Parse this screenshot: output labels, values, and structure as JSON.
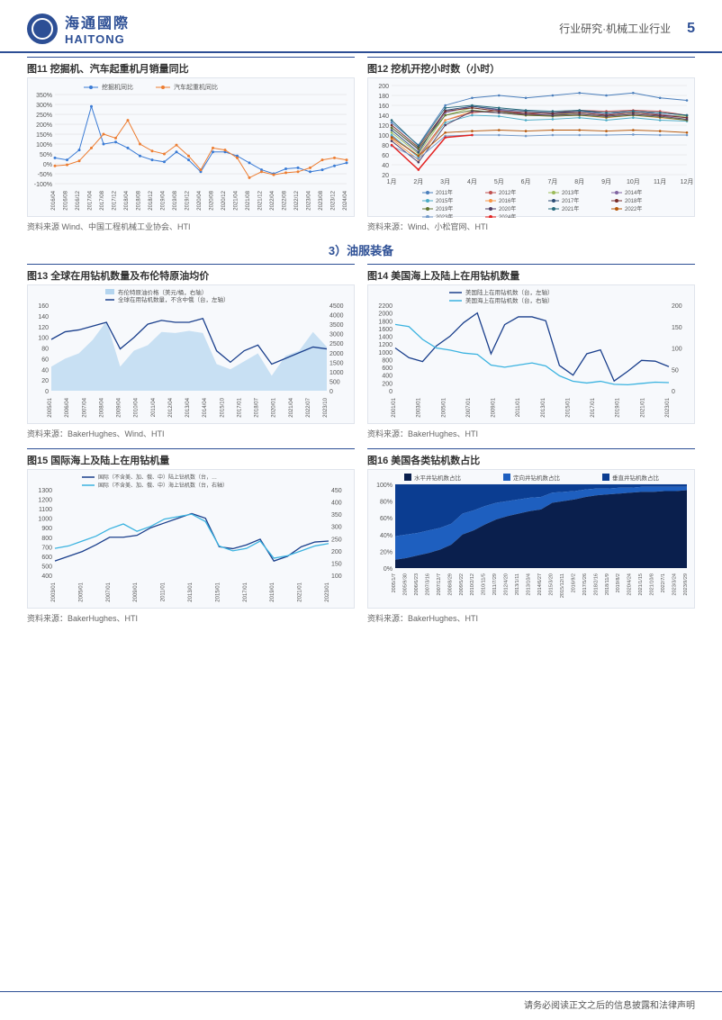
{
  "header": {
    "company_cn": "海通國際",
    "company_en": "HAITONG",
    "category": "行业研究·机械工业行业",
    "page": "5"
  },
  "section3": "3）油服装备",
  "footer": "请务必阅读正文之后的信息披露和法律声明",
  "fig11": {
    "title": "图11 挖掘机、汽车起重机月销量同比",
    "source": "资料来源 Wind、中国工程机械工业协会、HTI",
    "series": [
      {
        "name": "挖掘机同比",
        "color": "#3a7bd5"
      },
      {
        "name": "汽车起重机同比",
        "color": "#ed7d31"
      }
    ],
    "ylim": [
      -100,
      350
    ],
    "ytick": 50,
    "xlabels": [
      "2016/04",
      "2016/08",
      "2016/12",
      "2017/04",
      "2017/08",
      "2017/12",
      "2018/04",
      "2018/08",
      "2018/12",
      "2019/04",
      "2019/08",
      "2019/12",
      "2020/04",
      "2020/08",
      "2020/12",
      "2021/04",
      "2021/08",
      "2021/12",
      "2022/04",
      "2022/08",
      "2022/12",
      "2023/04",
      "2023/08",
      "2023/12",
      "2024/04"
    ],
    "s1": [
      30,
      20,
      70,
      290,
      100,
      110,
      80,
      40,
      20,
      10,
      60,
      20,
      -40,
      60,
      60,
      40,
      5,
      -30,
      -50,
      -25,
      -20,
      -40,
      -30,
      -10,
      5
    ],
    "s2": [
      -10,
      -5,
      15,
      80,
      150,
      130,
      220,
      100,
      65,
      50,
      95,
      40,
      -30,
      80,
      70,
      30,
      -70,
      -40,
      -55,
      -45,
      -40,
      -20,
      20,
      30,
      20
    ]
  },
  "fig12": {
    "title": "图12 挖机开挖小时数（小时）",
    "source": "资料来源：Wind、小松官网、HTI",
    "xlabels": [
      "1月",
      "2月",
      "3月",
      "4月",
      "5月",
      "6月",
      "7月",
      "8月",
      "9月",
      "10月",
      "11月",
      "12月"
    ],
    "ylim": [
      20,
      200
    ],
    "ytick": 20,
    "series": [
      {
        "name": "2011年",
        "color": "#4a7ebb",
        "v": [
          125,
          80,
          160,
          175,
          180,
          175,
          180,
          185,
          180,
          185,
          175,
          170
        ]
      },
      {
        "name": "2012年",
        "color": "#c0504d",
        "v": [
          98,
          58,
          130,
          145,
          150,
          142,
          145,
          150,
          148,
          150,
          148,
          140
        ]
      },
      {
        "name": "2013年",
        "color": "#9bbb59",
        "v": [
          105,
          62,
          140,
          155,
          148,
          140,
          140,
          145,
          140,
          145,
          140,
          138
        ]
      },
      {
        "name": "2014年",
        "color": "#8064a2",
        "v": [
          115,
          70,
          145,
          158,
          150,
          145,
          143,
          148,
          142,
          148,
          142,
          135
        ]
      },
      {
        "name": "2015年",
        "color": "#4bacc6",
        "v": [
          100,
          55,
          125,
          140,
          138,
          130,
          132,
          135,
          130,
          135,
          130,
          128
        ]
      },
      {
        "name": "2016年",
        "color": "#f79646",
        "v": [
          92,
          50,
          130,
          148,
          145,
          140,
          138,
          140,
          135,
          140,
          135,
          130
        ]
      },
      {
        "name": "2017年",
        "color": "#2c4d75",
        "v": [
          110,
          65,
          150,
          158,
          152,
          148,
          145,
          148,
          145,
          148,
          145,
          140
        ]
      },
      {
        "name": "2018年",
        "color": "#772c2a",
        "v": [
          120,
          75,
          148,
          155,
          148,
          145,
          143,
          145,
          140,
          145,
          140,
          135
        ]
      },
      {
        "name": "2019年",
        "color": "#5f7530",
        "v": [
          115,
          72,
          140,
          150,
          145,
          140,
          138,
          140,
          136,
          140,
          136,
          130
        ]
      },
      {
        "name": "2020年",
        "color": "#4d3b62",
        "v": [
          88,
          45,
          120,
          148,
          145,
          142,
          140,
          142,
          138,
          142,
          138,
          132
        ]
      },
      {
        "name": "2021年",
        "color": "#276a7c",
        "v": [
          130,
          78,
          155,
          160,
          155,
          150,
          148,
          150,
          145,
          148,
          145,
          140
        ]
      },
      {
        "name": "2022年",
        "color": "#b65708",
        "v": [
          95,
          58,
          105,
          108,
          110,
          108,
          110,
          110,
          108,
          110,
          108,
          105
        ]
      },
      {
        "name": "2023年",
        "color": "#729aca",
        "v": [
          78,
          52,
          98,
          100,
          100,
          98,
          100,
          100,
          100,
          101,
          100,
          100
        ]
      },
      {
        "name": "2024年",
        "color": "#e32322",
        "v": [
          80,
          30,
          95,
          100
        ]
      }
    ]
  },
  "fig13": {
    "title": "图13 全球在用钻机数量及布伦特原油均价",
    "source": "资料来源：BakerHughes、Wind、HTI",
    "leg": [
      {
        "name": "布伦特原油价格（美元/桶，右轴）",
        "color": "#b4d5ef",
        "type": "area"
      },
      {
        "name": "全球在用钻机数量，不含中俄（台，左轴）",
        "color": "#1a3f8c",
        "type": "line"
      }
    ],
    "ylim_l": [
      0,
      160
    ],
    "ytick_l": 20,
    "ylim_r": [
      0,
      4500
    ],
    "ytick_r": 500,
    "xlabels": [
      "2005/01",
      "2006/04",
      "2007/04",
      "2008/04",
      "2009/04",
      "2010/04",
      "2011/04",
      "2012/04",
      "2013/04",
      "2014/04",
      "2015/10",
      "2017/01",
      "2018/07",
      "2020/01",
      "2021/04",
      "2022/07",
      "2023/10"
    ],
    "oil": [
      45,
      60,
      70,
      95,
      130,
      45,
      75,
      85,
      110,
      108,
      112,
      108,
      50,
      40,
      55,
      70,
      28,
      65,
      75,
      110,
      82
    ],
    "rigs": [
      2700,
      3100,
      3200,
      3400,
      3600,
      2200,
      2800,
      3500,
      3700,
      3600,
      3600,
      3800,
      2100,
      1500,
      2100,
      2400,
      1400,
      1700,
      2000,
      2300,
      2200
    ]
  },
  "fig14": {
    "title": "图14 美国海上及陆上在用钻机数量",
    "source": "资料来源：BakerHughes、HTI",
    "leg": [
      {
        "name": "美国陆上在用钻机数（台，左轴）",
        "color": "#1a3f8c"
      },
      {
        "name": "美国海上在用钻机数（台，右轴）",
        "color": "#3bb3e0"
      }
    ],
    "ylim_l": [
      0,
      2200
    ],
    "ytick_l": 200,
    "ylim_r": [
      0,
      200
    ],
    "ytick_r": 50,
    "xlabels": [
      "2001/01",
      "2003/01",
      "2005/01",
      "2007/01",
      "2009/01",
      "2011/01",
      "2013/01",
      "2015/01",
      "2017/01",
      "2019/01",
      "2021/01",
      "2023/01"
    ],
    "land": [
      1100,
      850,
      750,
      1150,
      1400,
      1750,
      2000,
      950,
      1700,
      1900,
      1900,
      1800,
      650,
      400,
      950,
      1050,
      250,
      500,
      780,
      760,
      620
    ],
    "sea": [
      155,
      150,
      120,
      100,
      95,
      88,
      85,
      60,
      55,
      60,
      65,
      58,
      35,
      22,
      18,
      22,
      15,
      14,
      17,
      20,
      19
    ]
  },
  "fig15": {
    "title": "图15 国际海上及陆上在用钻机量",
    "source": "资料来源：BakerHughes、HTI",
    "leg": [
      {
        "name": "国际（不含美、加、俄、中）陆上钻机数（台，…",
        "color": "#1a3f8c"
      },
      {
        "name": "国际（不含美、加、俄、中）海上钻机数（台，右轴）",
        "color": "#3bb3e0"
      }
    ],
    "ylim_l": [
      400,
      1300
    ],
    "ytick_l": 100,
    "ylim_r": [
      100,
      450
    ],
    "ytick_r": 50,
    "xlabels": [
      "2003/01",
      "2005/01",
      "2007/01",
      "2009/01",
      "2011/01",
      "2013/01",
      "2015/01",
      "2017/01",
      "2019/01",
      "2021/01",
      "2023/01"
    ],
    "land": [
      550,
      600,
      650,
      720,
      800,
      800,
      820,
      900,
      950,
      1000,
      1050,
      1000,
      700,
      680,
      720,
      780,
      550,
      600,
      700,
      750,
      760
    ],
    "sea": [
      210,
      220,
      240,
      260,
      290,
      310,
      280,
      300,
      330,
      340,
      350,
      320,
      220,
      200,
      210,
      240,
      170,
      180,
      200,
      220,
      230
    ]
  },
  "fig16": {
    "title": "图16 美国各类钻机数占比",
    "source": "资料来源：BakerHughes、HTI",
    "leg": [
      {
        "name": "水平井钻机数占比",
        "color": "#0a1f4d"
      },
      {
        "name": "定向井钻机数占比",
        "color": "#1e5fbf"
      },
      {
        "name": "垂直井钻机数占比",
        "color": "#0b3d91"
      }
    ],
    "ylim": [
      0,
      100
    ],
    "ytick": 20,
    "xlabels": [
      "2005/1/7",
      "2005/9/30",
      "2006/6/23",
      "2007/3/16",
      "2007/12/7",
      "2008/8/29",
      "2009/5/22",
      "2010/2/12",
      "2010/11/5",
      "2011/7/29",
      "2012/4/20",
      "2013/1/11",
      "2013/10/4",
      "2014/6/27",
      "2015/3/20",
      "2015/12/11",
      "2016/9/2",
      "2017/5/26",
      "2018/2/16",
      "2018/11/9",
      "2019/8/2",
      "2020/4/24",
      "2021/1/15",
      "2021/10/8",
      "2022/7/1",
      "2023/3/24",
      "2023/9/29"
    ],
    "horiz": [
      10,
      12,
      15,
      18,
      22,
      28,
      40,
      45,
      52,
      58,
      62,
      65,
      68,
      70,
      78,
      80,
      82,
      85,
      87,
      88,
      89,
      90,
      91,
      91,
      92,
      92,
      93
    ],
    "direc": [
      28,
      28,
      27,
      27,
      26,
      25,
      25,
      24,
      22,
      20,
      18,
      17,
      16,
      15,
      12,
      11,
      10,
      9,
      8,
      7,
      7,
      6,
      6,
      6,
      5,
      5,
      4
    ]
  }
}
